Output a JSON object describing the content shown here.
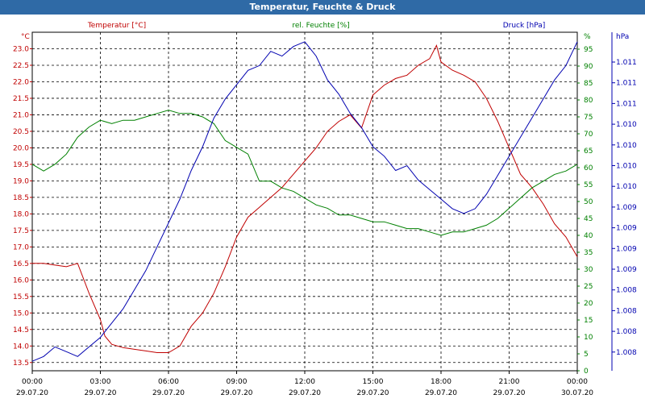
{
  "window": {
    "title": "Temperatur, Feuchte & Druck"
  },
  "chart_data": {
    "type": "line",
    "title": "Temperatur, Feuchte & Druck",
    "colors": {
      "temperature": "#c00000",
      "humidity": "#008000",
      "pressure": "#0000b0",
      "grid": "#000000",
      "title_bar": "#2f6aa6"
    },
    "legend": {
      "placement": "top",
      "entries": [
        "Temperatur [°C]",
        "rel. Feuchte [%]",
        "Druck [hPa]"
      ]
    },
    "grid": true,
    "x_axis": {
      "type": "time",
      "range_hours": [
        0,
        24
      ],
      "ticks": [
        {
          "time": "00:00",
          "date": "29.07.20"
        },
        {
          "time": "03:00",
          "date": "29.07.20"
        },
        {
          "time": "06:00",
          "date": "29.07.20"
        },
        {
          "time": "09:00",
          "date": "29.07.20"
        },
        {
          "time": "12:00",
          "date": "29.07.20"
        },
        {
          "time": "15:00",
          "date": "29.07.20"
        },
        {
          "time": "18:00",
          "date": "29.07.20"
        },
        {
          "time": "21:00",
          "date": "29.07.20"
        },
        {
          "time": "00:00",
          "date": "30.07.20"
        }
      ]
    },
    "axes": {
      "temperature": {
        "unit_label": "°C",
        "ylim": [
          13.25,
          23.5
        ],
        "ticks": [
          "13.5",
          "14.0",
          "14.5",
          "15.0",
          "15.5",
          "16.0",
          "16.5",
          "17.0",
          "17.5",
          "18.0",
          "18.5",
          "19.0",
          "19.5",
          "20.0",
          "20.5",
          "21.0",
          "21.5",
          "22.0",
          "22.5",
          "23.0"
        ]
      },
      "humidity": {
        "unit_label": "%",
        "ylim": [
          0,
          100
        ],
        "ticks": [
          "0",
          "5",
          "10",
          "15",
          "20",
          "25",
          "30",
          "35",
          "40",
          "45",
          "50",
          "55",
          "60",
          "65",
          "70",
          "75",
          "80",
          "85",
          "90",
          "95"
        ]
      },
      "pressure": {
        "unit_label": "hPa",
        "ticks": [
          "1.008",
          "1.008",
          "1.008",
          "1.008",
          "1.009",
          "1.009",
          "1.009",
          "1.009",
          "1.010",
          "1.010",
          "1.010",
          "1.010",
          "1.011",
          "1.011",
          "1.011"
        ]
      }
    },
    "series": [
      {
        "name": "Temperatur [°C]",
        "axis": "temperature",
        "x": [
          0,
          0.5,
          1,
          1.5,
          2,
          2.5,
          3,
          3.2,
          3.5,
          4,
          4.5,
          5,
          5.5,
          6,
          6.5,
          7,
          7.5,
          8,
          8.5,
          9,
          9.5,
          10,
          10.5,
          11,
          11.5,
          12,
          12.5,
          13,
          13.5,
          14,
          14.5,
          15,
          15.5,
          16,
          16.5,
          17,
          17.5,
          17.8,
          18,
          18.5,
          19,
          19.5,
          20,
          20.5,
          21,
          21.5,
          22,
          22.5,
          23,
          23.5,
          24
        ],
        "values": [
          16.5,
          16.5,
          16.45,
          16.4,
          16.5,
          15.6,
          14.8,
          14.3,
          14.05,
          13.95,
          13.9,
          13.85,
          13.8,
          13.8,
          14.0,
          14.6,
          15.0,
          15.6,
          16.4,
          17.3,
          17.9,
          18.2,
          18.5,
          18.8,
          19.2,
          19.6,
          20.0,
          20.5,
          20.8,
          21.0,
          20.6,
          21.6,
          21.9,
          22.1,
          22.2,
          22.5,
          22.7,
          23.1,
          22.6,
          22.35,
          22.2,
          22.0,
          21.5,
          20.8,
          20.0,
          19.2,
          18.8,
          18.3,
          17.7,
          17.3,
          16.7
        ]
      },
      {
        "name": "rel. Feuchte [%]",
        "axis": "humidity",
        "x": [
          0,
          0.5,
          1,
          1.5,
          2,
          2.5,
          3,
          3.5,
          4,
          4.5,
          5,
          5.5,
          6,
          6.5,
          7,
          7.5,
          8,
          8.5,
          9,
          9.5,
          10,
          10.5,
          11,
          11.5,
          12,
          12.5,
          13,
          13.5,
          14,
          14.5,
          15,
          15.5,
          16,
          16.5,
          17,
          17.5,
          18,
          18.5,
          19,
          19.5,
          20,
          20.5,
          21,
          21.5,
          22,
          22.5,
          23,
          23.5,
          24
        ],
        "values": [
          61,
          59,
          61,
          64,
          69,
          72,
          74,
          73,
          74,
          74,
          75,
          76,
          77,
          76,
          76,
          75,
          73,
          68,
          66,
          64,
          56,
          56,
          54,
          53,
          51,
          49,
          48,
          46,
          46,
          45,
          44,
          44,
          43,
          42,
          42,
          41,
          40,
          41,
          41,
          42,
          43,
          45,
          48,
          51,
          54,
          56,
          58,
          59,
          61
        ]
      },
      {
        "name": "Druck [hPa]",
        "axis": "pressure",
        "x": [
          0,
          0.5,
          1,
          1.5,
          2,
          2.5,
          3,
          3.5,
          4,
          4.5,
          5,
          5.5,
          6,
          6.5,
          7,
          7.5,
          8,
          8.5,
          9,
          9.5,
          10,
          10.5,
          11,
          11.5,
          12,
          12.5,
          13,
          13.5,
          14,
          14.5,
          15,
          15.5,
          16,
          16.5,
          17,
          17.5,
          18,
          18.5,
          19,
          19.5,
          20,
          20.5,
          21,
          21.5,
          22,
          22.5,
          23,
          23.5,
          24
        ],
        "values": [
          1008.05,
          1008.1,
          1008.2,
          1008.15,
          1008.1,
          1008.2,
          1008.3,
          1008.45,
          1008.6,
          1008.8,
          1009.0,
          1009.25,
          1009.5,
          1009.75,
          1010.05,
          1010.3,
          1010.6,
          1010.8,
          1010.95,
          1011.1,
          1011.15,
          1011.3,
          1011.25,
          1011.35,
          1011.4,
          1011.25,
          1011.0,
          1010.85,
          1010.65,
          1010.5,
          1010.3,
          1010.2,
          1010.05,
          1010.1,
          1009.95,
          1009.85,
          1009.75,
          1009.65,
          1009.6,
          1009.65,
          1009.8,
          1010.0,
          1010.2,
          1010.4,
          1010.6,
          1010.8,
          1011.0,
          1011.15,
          1011.4
        ]
      }
    ]
  }
}
